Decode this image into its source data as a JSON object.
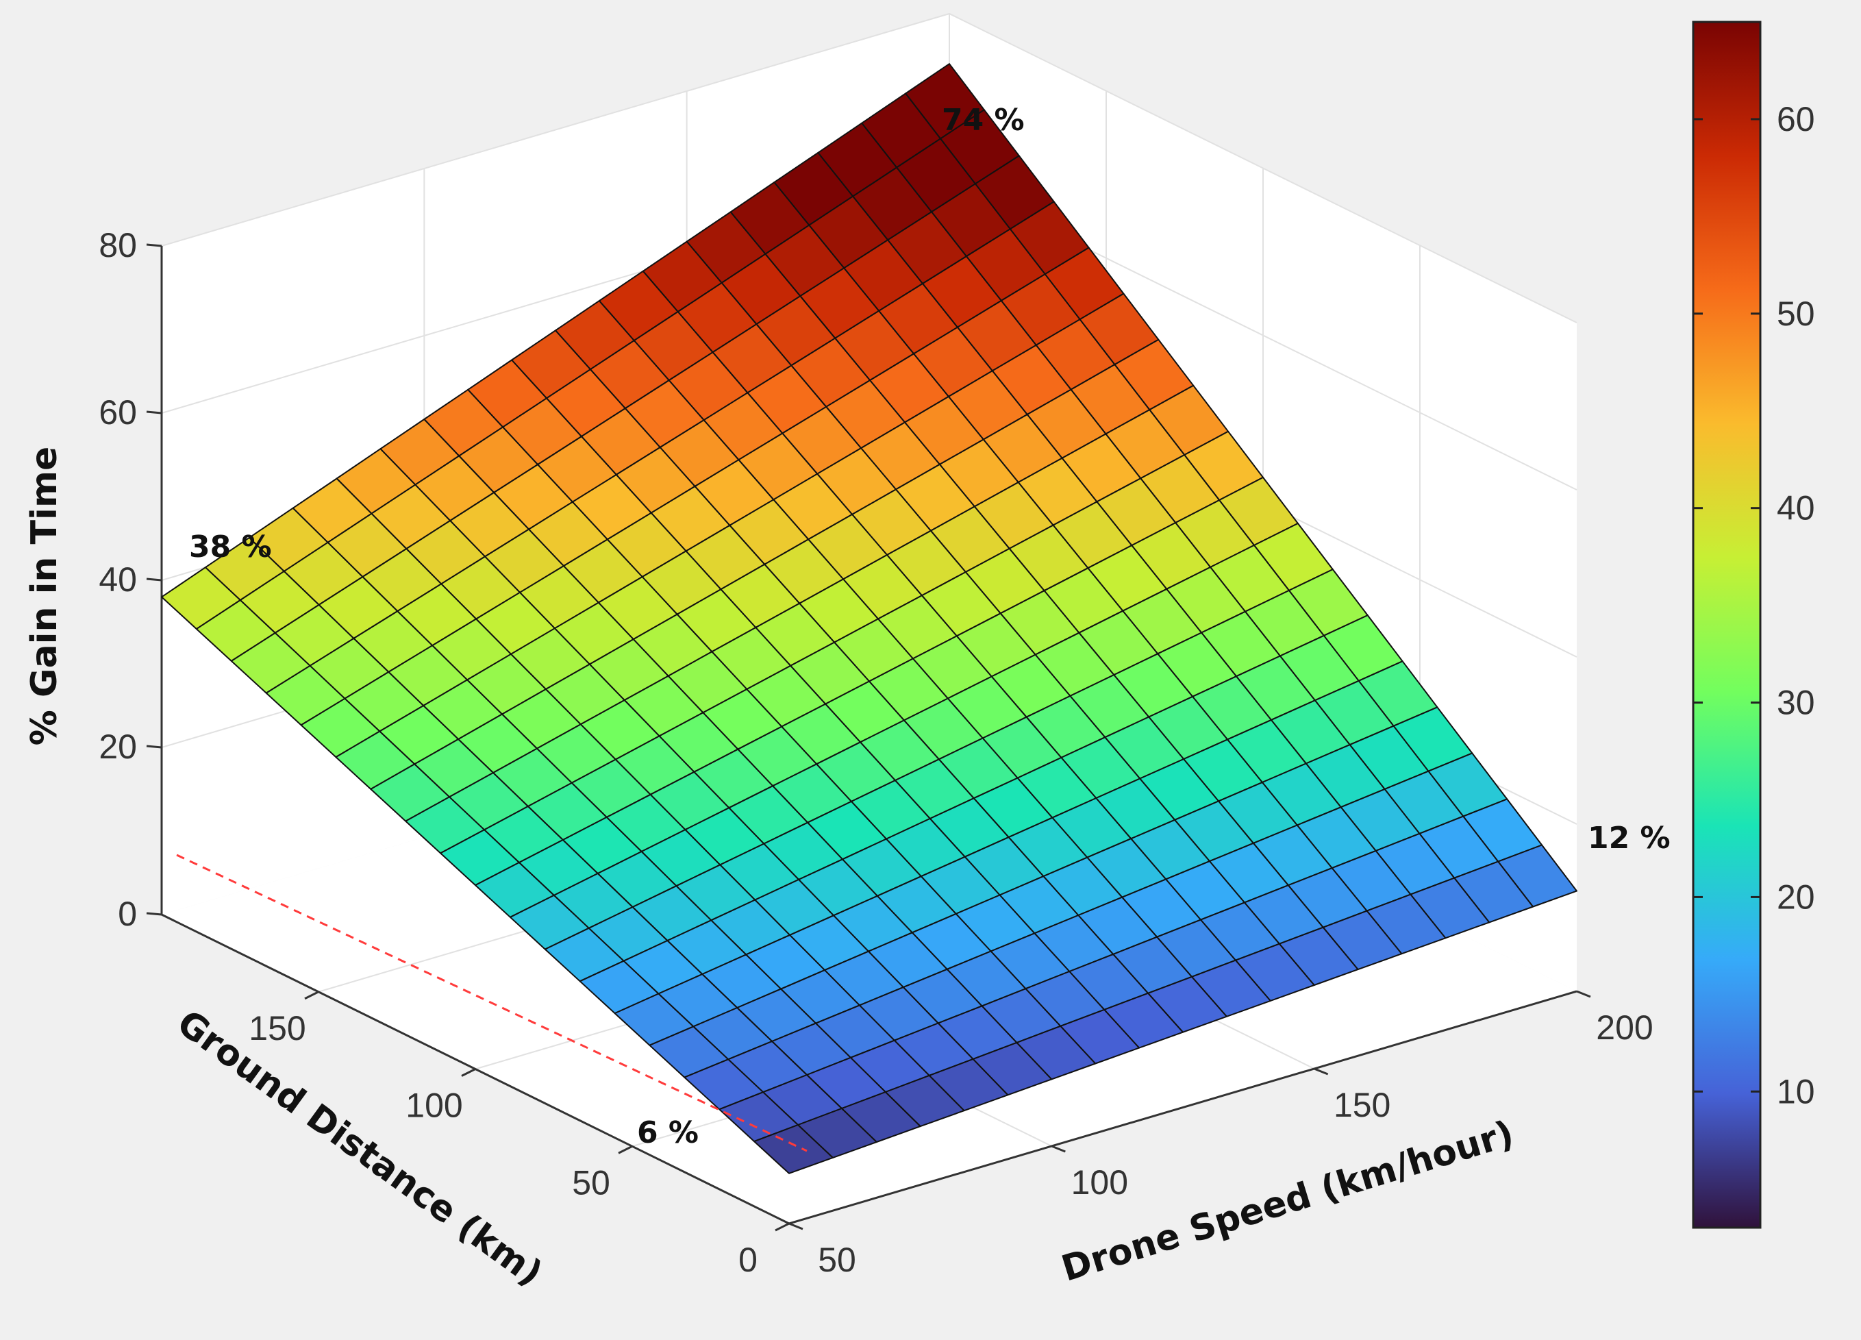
{
  "chart_data": {
    "type": "surface",
    "zlabel": "% Gain in Time",
    "xlabel": "Drone Speed (km/hour)",
    "ylabel": "Ground Distance (km)",
    "xlim": [
      50,
      200
    ],
    "ylim": [
      0,
      200
    ],
    "zlim": [
      0,
      80
    ],
    "x_ticks": [
      "50",
      "100",
      "150",
      "200"
    ],
    "y_ticks": [
      "0",
      "50",
      "100",
      "150"
    ],
    "z_ticks": [
      "0",
      "20",
      "40",
      "60",
      "80"
    ],
    "colorbar": {
      "range": [
        3,
        65
      ],
      "ticks": [
        "10",
        "20",
        "30",
        "40",
        "50",
        "60"
      ]
    },
    "colormap": [
      "#30123b",
      "#4662d7",
      "#36aaf9",
      "#1ae4b6",
      "#72fe5e",
      "#c7ef34",
      "#fabb2d",
      "#f66b19",
      "#cb2a04",
      "#7a0403"
    ],
    "grid": true,
    "corner_values": {
      "speed_50_distance_0": 6,
      "speed_200_distance_0": 12,
      "speed_50_distance_200": 38,
      "speed_200_distance_200": 74
    },
    "grid_size": [
      19,
      19
    ],
    "annotations": [
      {
        "text": "74 %",
        "anchor": "speed_200_distance_200"
      },
      {
        "text": "38 %",
        "anchor": "speed_50_distance_200"
      },
      {
        "text": "12 %",
        "anchor": "speed_200_distance_0"
      },
      {
        "text": "6 %",
        "anchor": "speed_50_distance_0"
      }
    ]
  }
}
